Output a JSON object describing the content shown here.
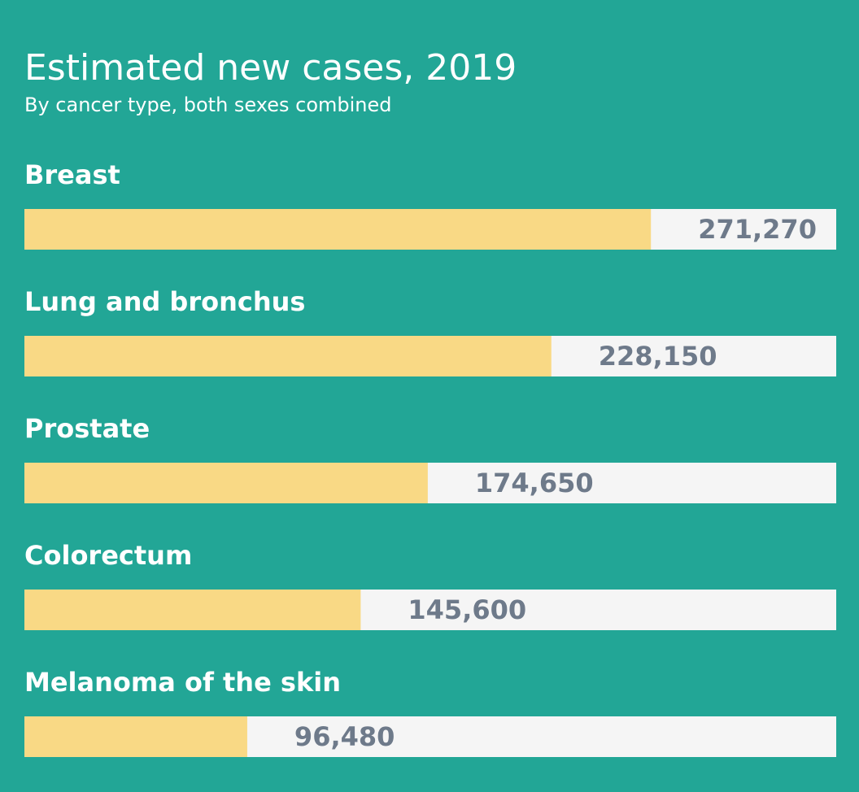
{
  "chart_data": {
    "type": "bar",
    "orientation": "horizontal",
    "title": "Estimated new cases, 2019",
    "subtitle": "By cancer type, both sexes combined",
    "categories": [
      "Breast",
      "Lung and bronchus",
      "Prostate",
      "Colorectum",
      "Melanoma of the skin"
    ],
    "values": [
      271270,
      228150,
      174650,
      145600,
      96480
    ],
    "value_labels": [
      "271,270",
      "228,150",
      "174,650",
      "145,600",
      "96,480"
    ],
    "color": "#f9d985",
    "xlim": [
      0,
      351500
    ]
  }
}
